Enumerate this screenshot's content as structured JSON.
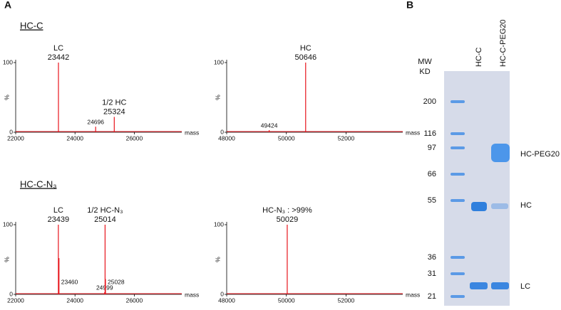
{
  "panel_labels": [
    "A",
    "B"
  ],
  "section_titles": [
    "HC-C",
    "HC-C-N₃"
  ],
  "chart_data": [
    {
      "type": "spectrum",
      "xlabel": "mass",
      "ylabel": "%",
      "color": "#e8141c",
      "xlim": [
        22000,
        27600
      ],
      "xticks": [
        22000,
        24000,
        26000
      ],
      "ylim": [
        0,
        100
      ],
      "yticks": [
        0,
        100
      ],
      "peaks": [
        {
          "name": "LC",
          "mass": 23442,
          "height": 100
        },
        {
          "mass": 24696,
          "height": 8
        },
        {
          "name": "1/2 HC",
          "mass": 25324,
          "height": 22
        }
      ]
    },
    {
      "type": "spectrum",
      "xlabel": "mass",
      "ylabel": "%",
      "color": "#e8141c",
      "xlim": [
        48000,
        53900
      ],
      "xticks": [
        48000,
        50000,
        52000
      ],
      "ylim": [
        0,
        100
      ],
      "yticks": [
        0,
        100
      ],
      "peaks": [
        {
          "mass": 49424,
          "height": 3
        },
        {
          "name": "HC",
          "mass": 50646,
          "height": 100
        }
      ]
    },
    {
      "type": "spectrum",
      "xlabel": "mass",
      "ylabel": "%",
      "color": "#e8141c",
      "xlim": [
        22000,
        27600
      ],
      "xticks": [
        22000,
        24000,
        26000
      ],
      "ylim": [
        0,
        100
      ],
      "yticks": [
        0,
        100
      ],
      "peaks": [
        {
          "name": "LC",
          "mass": 23439,
          "height": 100
        },
        {
          "mass": 23460,
          "height": 52
        },
        {
          "mass": 24999,
          "height": 3
        },
        {
          "name": "1/2 HC-N₃",
          "mass": 25014,
          "height": 100
        },
        {
          "mass": 25028,
          "height": 22
        }
      ]
    },
    {
      "type": "spectrum",
      "xlabel": "mass",
      "ylabel": "%",
      "color": "#e8141c",
      "xlim": [
        48000,
        53900
      ],
      "xticks": [
        48000,
        50000,
        52000
      ],
      "ylim": [
        0,
        100
      ],
      "yticks": [
        0,
        100
      ],
      "peaks": [
        {
          "name": "HC-N₃ : >99%",
          "mass": 50029,
          "height": 100
        }
      ]
    }
  ],
  "gel": {
    "mw_header": [
      "MW",
      "KD"
    ],
    "lanes": [
      "HC-C",
      "HC-C-PEG20"
    ],
    "ladder": [
      200,
      116,
      97,
      66,
      55,
      36,
      31,
      21
    ],
    "band_labels": [
      "HC-PEG20",
      "HC",
      "LC"
    ]
  }
}
